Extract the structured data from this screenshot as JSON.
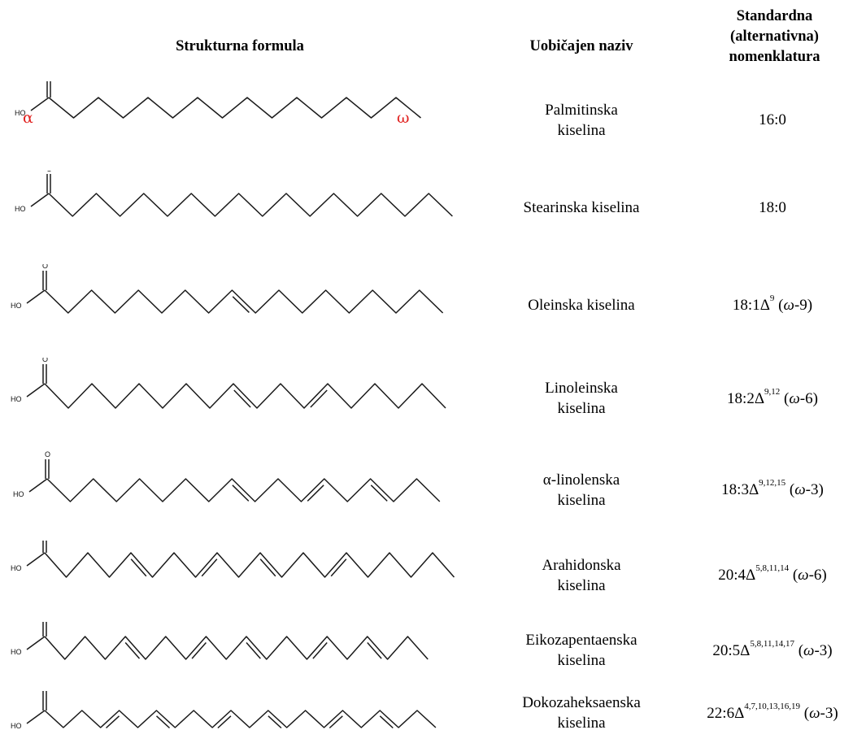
{
  "headers": {
    "structure": "Strukturna formula",
    "common_name": "Uobičajen naziv",
    "standard_line1": "Standardna",
    "standard_line2": "(alternativna)",
    "standard_line3": "nomenklatura"
  },
  "markers": {
    "alpha": "α",
    "omega": "ω"
  },
  "atom_labels": {
    "oxygen": "O",
    "hydroxyl": "HO"
  },
  "colors": {
    "marker": "#e0201e",
    "bond": "#1a1a1a"
  },
  "rows": [
    {
      "name_line1": "Palmitinska",
      "name_line2": "kiselina",
      "std_main": "16:0",
      "std_sup": "",
      "std_omega": "",
      "carbons": 16,
      "double_bonds": []
    },
    {
      "name_line1": "Stearinska kiselina",
      "name_line2": "",
      "std_main": "18:0",
      "std_sup": "",
      "std_omega": "",
      "carbons": 18,
      "double_bonds": []
    },
    {
      "name_line1": "Oleinska kiselina",
      "name_line2": "",
      "std_main": "18:1Δ",
      "std_sup": "9",
      "std_omega": "-9)",
      "carbons": 18,
      "double_bonds": [
        9
      ]
    },
    {
      "name_line1": "Linoleinska",
      "name_line2": "kiselina",
      "std_main": "18:2Δ",
      "std_sup": "9,12",
      "std_omega": "-6)",
      "carbons": 18,
      "double_bonds": [
        9,
        12
      ]
    },
    {
      "name_line1": "α-linolenska",
      "name_line2": "kiselina",
      "std_main": "18:3Δ",
      "std_sup": "9,12,15",
      "std_omega": "-3)",
      "carbons": 18,
      "double_bonds": [
        9,
        12,
        15
      ]
    },
    {
      "name_line1": "Arahidonska",
      "name_line2": "kiselina",
      "std_main": "20:4Δ",
      "std_sup": "5,8,11,14",
      "std_omega": "-6)",
      "carbons": 20,
      "double_bonds": [
        5,
        8,
        11,
        14
      ]
    },
    {
      "name_line1": "Eikozapentaenska",
      "name_line2": "kiselina",
      "std_main": "20:5Δ",
      "std_sup": "5,8,11,14,17",
      "std_omega": "-3)",
      "carbons": 20,
      "double_bonds": [
        5,
        8,
        11,
        14,
        17
      ]
    },
    {
      "name_line1": "Dokozaheksaenska",
      "name_line2": "kiselina",
      "std_main": "22:6Δ",
      "std_sup": "4,7,10,13,16,19",
      "std_omega": "-3)",
      "carbons": 22,
      "double_bonds": [
        4,
        7,
        10,
        13,
        16,
        19
      ]
    }
  ]
}
